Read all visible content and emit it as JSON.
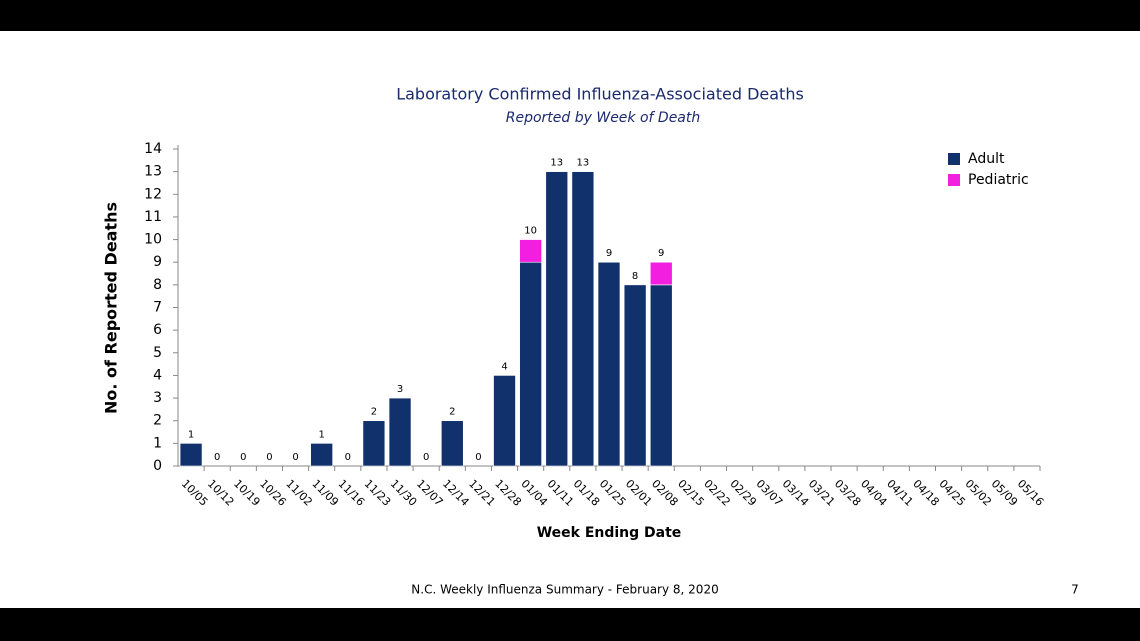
{
  "chart_data": {
    "type": "stacked_bar",
    "title": "Laboratory Confirmed Influenza-Associated Deaths",
    "subtitle": "Reported by Week of Death",
    "x_label": "Week Ending Date",
    "y_label": "No. of Reported Deaths",
    "categories": [
      "10/05",
      "10/12",
      "10/19",
      "10/26",
      "11/02",
      "11/09",
      "11/16",
      "11/23",
      "11/30",
      "12/07",
      "12/14",
      "12/21",
      "12/28",
      "01/04",
      "01/11",
      "01/18",
      "01/25",
      "02/01",
      "02/08",
      "02/15",
      "02/22",
      "02/29",
      "03/07",
      "03/14",
      "03/21",
      "03/28",
      "04/04",
      "04/11",
      "04/18",
      "04/25",
      "05/02",
      "05/09",
      "05/16"
    ],
    "series": [
      {
        "name": "Adult",
        "color": "#11316c",
        "values": [
          1,
          0,
          0,
          0,
          0,
          1,
          0,
          2,
          3,
          0,
          2,
          0,
          4,
          9,
          13,
          13,
          9,
          8,
          8,
          null,
          null,
          null,
          null,
          null,
          null,
          null,
          null,
          null,
          null,
          null,
          null,
          null,
          null
        ]
      },
      {
        "name": "Pediatric",
        "color": "#f21ee0",
        "values": [
          0,
          0,
          0,
          0,
          0,
          0,
          0,
          0,
          0,
          0,
          0,
          0,
          0,
          1,
          0,
          0,
          0,
          0,
          1,
          null,
          null,
          null,
          null,
          null,
          null,
          null,
          null,
          null,
          null,
          null,
          null,
          null,
          null
        ]
      }
    ],
    "totals": [
      1,
      0,
      0,
      0,
      0,
      1,
      0,
      2,
      3,
      0,
      2,
      0,
      4,
      10,
      13,
      13,
      9,
      8,
      9,
      null,
      null,
      null,
      null,
      null,
      null,
      null,
      null,
      null,
      null,
      null,
      null,
      null,
      null
    ],
    "ylim": [
      0,
      14
    ],
    "yticks": [
      0,
      1,
      2,
      3,
      4,
      5,
      6,
      7,
      8,
      9,
      10,
      11,
      12,
      13,
      14
    ],
    "legend": "top-right"
  },
  "footer": {
    "text": "N.C. Weekly Influenza Summary - February 8, 2020",
    "page": "7"
  }
}
